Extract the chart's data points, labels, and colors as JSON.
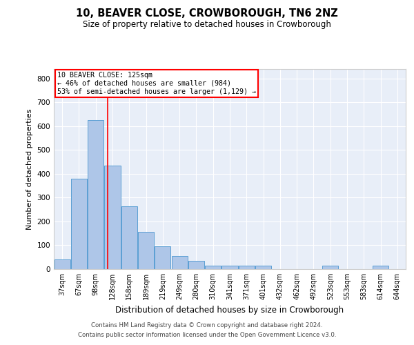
{
  "title": "10, BEAVER CLOSE, CROWBOROUGH, TN6 2NZ",
  "subtitle": "Size of property relative to detached houses in Crowborough",
  "xlabel": "Distribution of detached houses by size in Crowborough",
  "ylabel": "Number of detached properties",
  "categories": [
    "37sqm",
    "67sqm",
    "98sqm",
    "128sqm",
    "158sqm",
    "189sqm",
    "219sqm",
    "249sqm",
    "280sqm",
    "310sqm",
    "341sqm",
    "371sqm",
    "401sqm",
    "432sqm",
    "462sqm",
    "492sqm",
    "523sqm",
    "553sqm",
    "583sqm",
    "614sqm",
    "644sqm"
  ],
  "values": [
    40,
    380,
    625,
    435,
    265,
    155,
    95,
    55,
    35,
    15,
    15,
    15,
    15,
    0,
    0,
    0,
    15,
    0,
    0,
    15,
    0
  ],
  "bar_color": "#aec6e8",
  "bar_edge_color": "#5a9fd4",
  "line_x_index": 2.72,
  "annotation_text": "10 BEAVER CLOSE: 125sqm\n← 46% of detached houses are smaller (984)\n53% of semi-detached houses are larger (1,129) →",
  "annotation_box_color": "white",
  "annotation_box_edge": "red",
  "line_color": "red",
  "ylim": [
    0,
    840
  ],
  "yticks": [
    0,
    100,
    200,
    300,
    400,
    500,
    600,
    700,
    800
  ],
  "bg_color": "#e8eef8",
  "grid_color": "white",
  "footer_line1": "Contains HM Land Registry data © Crown copyright and database right 2024.",
  "footer_line2": "Contains public sector information licensed under the Open Government Licence v3.0."
}
